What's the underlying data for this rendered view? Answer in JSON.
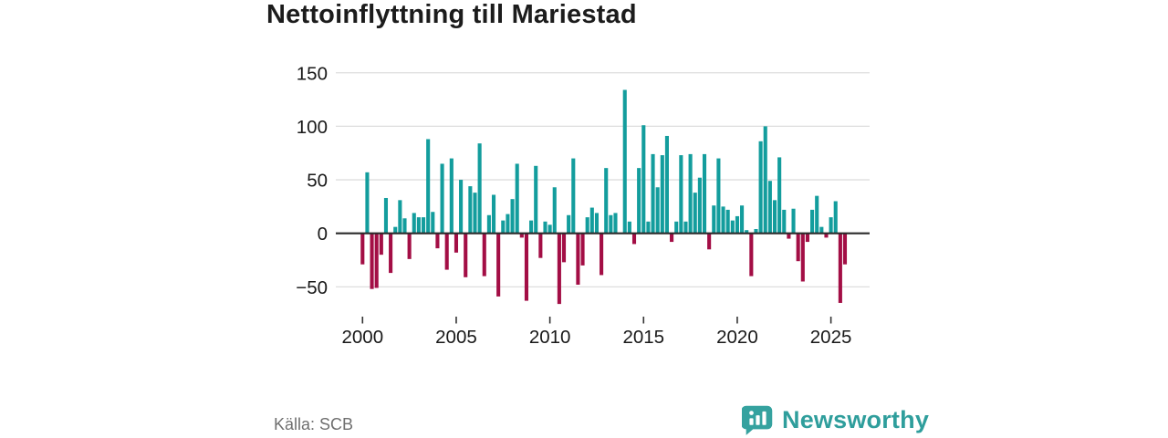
{
  "title": "Nettoinflyttning till Mariestad",
  "source": "Källa: SCB",
  "brand": {
    "name": "Newsworthy",
    "icon": "speech-bubble-bar-chart-icon",
    "color": "#2f9e9c"
  },
  "colors": {
    "positive_bar": "#139d9d",
    "negative_bar": "#a30e45",
    "grid_line": "#dedede",
    "zero_line": "#2b2b2b",
    "axis_text": "#191919",
    "muted_text": "#6f6f6f"
  },
  "chart_data": {
    "type": "bar",
    "title": "Nettoinflyttning till Mariestad",
    "x_unit": "quarter",
    "start": "2000 Q1",
    "end": "2025 Q4",
    "grid": true,
    "ylim": [
      -75,
      158
    ],
    "y_ticks": [
      150,
      100,
      50,
      0,
      -50
    ],
    "y_tick_labels": [
      "150",
      "100",
      "50",
      "0",
      "−50"
    ],
    "x_tick_years": [
      "2000",
      "2005",
      "2010",
      "2015",
      "2020",
      "2025"
    ],
    "values": [
      -29,
      57,
      -52,
      -51,
      -20,
      33,
      -37,
      6,
      31,
      14,
      -24,
      19,
      15,
      15,
      88,
      20,
      -14,
      65,
      -34,
      70,
      -18,
      50,
      -41,
      44,
      38,
      84,
      -40,
      17,
      36,
      -59,
      12,
      18,
      32,
      65,
      -4,
      -63,
      12,
      63,
      -23,
      11,
      8,
      43,
      -66,
      -27,
      17,
      70,
      -48,
      -30,
      15,
      24,
      19,
      -39,
      61,
      17,
      19,
      0,
      134,
      11,
      -10,
      61,
      101,
      11,
      74,
      43,
      73,
      91,
      -8,
      11,
      73,
      11,
      74,
      38,
      52,
      74,
      -15,
      26,
      70,
      25,
      22,
      12,
      16,
      26,
      3,
      -40,
      4,
      86,
      100,
      49,
      31,
      71,
      22,
      -5,
      23,
      -26,
      -45,
      -8,
      22,
      35,
      6,
      -4,
      15,
      30,
      -65,
      -29
    ]
  }
}
